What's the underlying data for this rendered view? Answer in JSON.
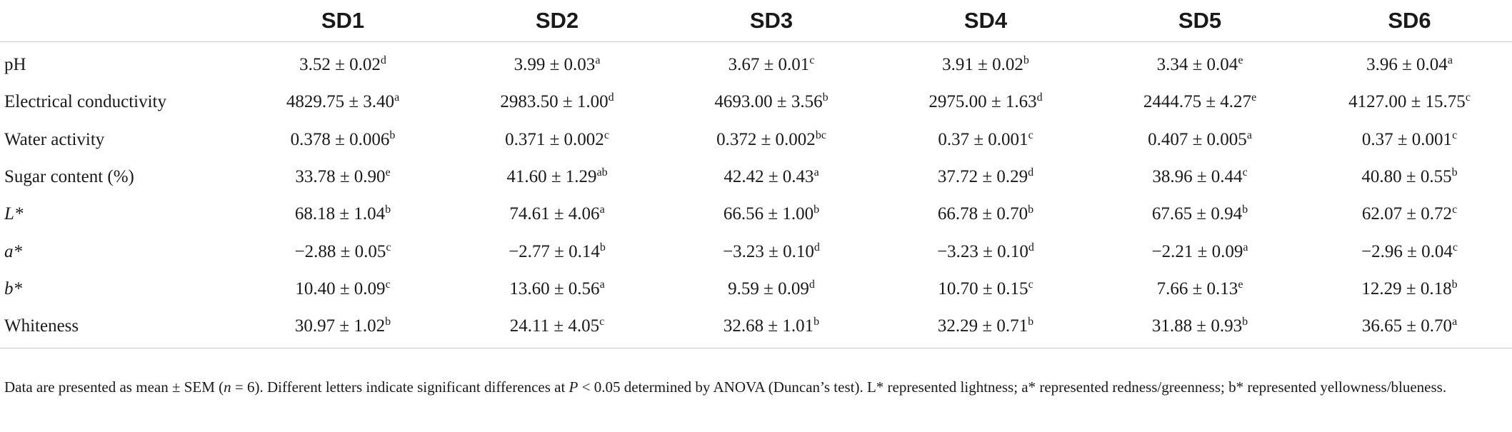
{
  "columns": [
    "",
    "SD1",
    "SD2",
    "SD3",
    "SD4",
    "SD5",
    "SD6"
  ],
  "rows": [
    {
      "label": "pH",
      "label_italic": false,
      "cells": [
        {
          "v": "3.52 ± 0.02",
          "s": "d"
        },
        {
          "v": "3.99 ± 0.03",
          "s": "a"
        },
        {
          "v": "3.67 ± 0.01",
          "s": "c"
        },
        {
          "v": "3.91 ± 0.02",
          "s": "b"
        },
        {
          "v": "3.34 ± 0.04",
          "s": "e"
        },
        {
          "v": "3.96 ± 0.04",
          "s": "a"
        }
      ]
    },
    {
      "label": "Electrical conductivity",
      "label_italic": false,
      "cells": [
        {
          "v": "4829.75 ± 3.40",
          "s": "a"
        },
        {
          "v": "2983.50 ± 1.00",
          "s": "d"
        },
        {
          "v": "4693.00 ± 3.56",
          "s": "b"
        },
        {
          "v": "2975.00 ± 1.63",
          "s": "d"
        },
        {
          "v": "2444.75 ± 4.27",
          "s": "e"
        },
        {
          "v": "4127.00 ± 15.75",
          "s": "c"
        }
      ]
    },
    {
      "label": "Water activity",
      "label_italic": false,
      "cells": [
        {
          "v": "0.378 ± 0.006",
          "s": "b"
        },
        {
          "v": "0.371 ± 0.002",
          "s": "c"
        },
        {
          "v": "0.372 ± 0.002",
          "s": "bc"
        },
        {
          "v": "0.37 ± 0.001",
          "s": "c"
        },
        {
          "v": "0.407 ± 0.005",
          "s": "a"
        },
        {
          "v": "0.37 ± 0.001",
          "s": "c"
        }
      ]
    },
    {
      "label": "Sugar content (%)",
      "label_italic": false,
      "cells": [
        {
          "v": "33.78 ± 0.90",
          "s": "e"
        },
        {
          "v": "41.60 ± 1.29",
          "s": "ab"
        },
        {
          "v": "42.42 ± 0.43",
          "s": "a"
        },
        {
          "v": "37.72 ± 0.29",
          "s": "d"
        },
        {
          "v": "38.96 ± 0.44",
          "s": "c"
        },
        {
          "v": "40.80 ± 0.55",
          "s": "b"
        }
      ]
    },
    {
      "label": "L*",
      "label_italic": true,
      "cells": [
        {
          "v": "68.18 ± 1.04",
          "s": "b"
        },
        {
          "v": "74.61 ± 4.06",
          "s": "a"
        },
        {
          "v": "66.56 ± 1.00",
          "s": "b"
        },
        {
          "v": "66.78 ± 0.70",
          "s": "b"
        },
        {
          "v": "67.65 ± 0.94",
          "s": "b"
        },
        {
          "v": "62.07 ± 0.72",
          "s": "c"
        }
      ]
    },
    {
      "label": "a*",
      "label_italic": true,
      "cells": [
        {
          "v": "−2.88 ± 0.05",
          "s": "c"
        },
        {
          "v": "−2.77 ± 0.14",
          "s": "b"
        },
        {
          "v": "−3.23 ± 0.10",
          "s": "d"
        },
        {
          "v": "−3.23 ± 0.10",
          "s": "d"
        },
        {
          "v": "−2.21 ± 0.09",
          "s": "a"
        },
        {
          "v": "−2.96 ± 0.04",
          "s": "c"
        }
      ]
    },
    {
      "label": "b*",
      "label_italic": true,
      "cells": [
        {
          "v": "10.40 ± 0.09",
          "s": "c"
        },
        {
          "v": "13.60 ± 0.56",
          "s": "a"
        },
        {
          "v": "9.59 ± 0.09",
          "s": "d"
        },
        {
          "v": "10.70 ± 0.15",
          "s": "c"
        },
        {
          "v": "7.66 ± 0.13",
          "s": "e"
        },
        {
          "v": "12.29 ± 0.18",
          "s": "b"
        }
      ]
    },
    {
      "label": "Whiteness",
      "label_italic": false,
      "cells": [
        {
          "v": "30.97 ± 1.02",
          "s": "b"
        },
        {
          "v": "24.11 ± 4.05",
          "s": "c"
        },
        {
          "v": "32.68 ± 1.01",
          "s": "b"
        },
        {
          "v": "32.29 ± 0.71",
          "s": "b"
        },
        {
          "v": "31.88 ± 0.93",
          "s": "b"
        },
        {
          "v": "36.65 ± 0.70",
          "s": "a"
        }
      ]
    }
  ],
  "footnote": {
    "part1": "Data are presented as mean ± SEM (",
    "n_var": "n",
    "part2": " = 6). Different letters indicate significant differences at ",
    "p_var": "P",
    "part3": " < 0.05 determined by ANOVA (Duncan’s test). L* represented lightness; a* represented redness/greenness; b* represented yellowness/blueness."
  },
  "colors": {
    "text": "#1a1a1a",
    "rule": "#c8c8c8",
    "background": "#ffffff"
  }
}
